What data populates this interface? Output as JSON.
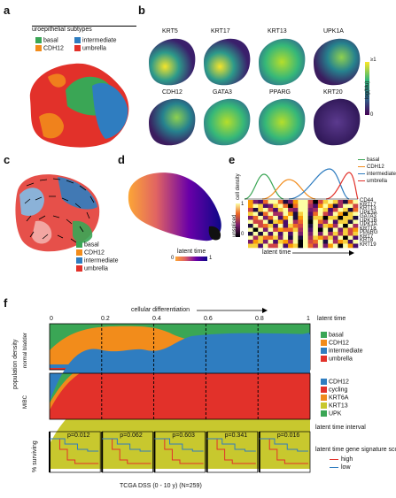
{
  "panel_labels": {
    "a": "a",
    "b": "b",
    "c": "c",
    "d": "d",
    "e": "e",
    "f": "f"
  },
  "colors": {
    "basal": "#3aa655",
    "cdh12": "#f28c1b",
    "intermediate": "#2f7dc0",
    "umbrella": "#e2312a",
    "cycling": "#e2312a",
    "krt6a": "#f08a1c",
    "krt13": "#c8c82e",
    "upk": "#3aa655"
  },
  "panel_a": {
    "title": "uroepithelial subtypes",
    "legend": [
      {
        "label": "basal",
        "color": "#3aa655"
      },
      {
        "label": "intermediate",
        "color": "#2f7dc0"
      },
      {
        "label": "CDH12",
        "color": "#f28c1b"
      },
      {
        "label": "umbrella",
        "color": "#e2312a"
      }
    ]
  },
  "panel_b": {
    "genes_row1": [
      "KRT5",
      "KRT17",
      "KRT13",
      "UPK1A"
    ],
    "genes_row2": [
      "CDH12",
      "GATA3",
      "PPARG",
      "KRT20"
    ],
    "scale_top": "≥1",
    "scale_bottom": "0",
    "scale_label": "log(Mu)"
  },
  "panel_c": {
    "legend": [
      {
        "label": "basal",
        "color": "#3aa655"
      },
      {
        "label": "CDH12",
        "color": "#f28c1b"
      },
      {
        "label": "intermediate",
        "color": "#2f7dc0"
      },
      {
        "label": "umbrella",
        "color": "#e2312a"
      }
    ]
  },
  "panel_d": {
    "scale_label": "latent time",
    "scale_min": "0",
    "scale_max": "1"
  },
  "panel_e": {
    "legend": [
      {
        "label": "basal",
        "color": "#3aa655"
      },
      {
        "label": "CDH12",
        "color": "#f28c1b"
      },
      {
        "label": "intermediate",
        "color": "#2f7dc0"
      },
      {
        "label": "umbrella",
        "color": "#e2312a"
      }
    ],
    "density_label": "cell density",
    "heat_label": "unspliced",
    "scale_top": "1",
    "scale_bottom": "0",
    "x_label": "latent time",
    "genes": [
      "CD44",
      "KRT17",
      "KRT13",
      "UPK3A",
      "GATA3",
      "UPK1B",
      "UPK1A",
      "KRT18",
      "PPARG",
      "KRT7",
      "KRT8",
      "KRT19"
    ]
  },
  "panel_f": {
    "top_title": "cellular differentiation",
    "x_ticks": [
      "0",
      "0.2",
      "0.4",
      "0.6",
      "0.8",
      "1"
    ],
    "x_axis_label": "latent time",
    "y_label_top": "population density",
    "row1_label": "normal bladder",
    "row2_label": "MIBC",
    "legend1": [
      {
        "label": "basal",
        "color": "#3aa655"
      },
      {
        "label": "CDH12",
        "color": "#f28c1b"
      },
      {
        "label": "intermediate",
        "color": "#2f7dc0"
      },
      {
        "label": "umbrella",
        "color": "#e2312a"
      }
    ],
    "legend2": [
      {
        "label": "CDH12",
        "color": "#2f7dc0"
      },
      {
        "label": "cycling",
        "color": "#e2312a"
      },
      {
        "label": "KRT6A",
        "color": "#f08a1c"
      },
      {
        "label": "KRT13",
        "color": "#c8c82e"
      },
      {
        "label": "UPK",
        "color": "#3aa655"
      }
    ],
    "interval_label": "latent time interval",
    "surv_ylabel": "% surviving",
    "pvalues": [
      "p=0.012",
      "p=0.062",
      "p=0.603",
      "p=0.341",
      "p=0.016"
    ],
    "surv_legend_title": "latent time gene signature score:",
    "surv_legend": [
      {
        "label": "high",
        "color": "#e2312a"
      },
      {
        "label": "low",
        "color": "#2f7dc0"
      }
    ],
    "surv_xlabel": "TCGA DSS (0 - 10 y) (N=259)"
  }
}
